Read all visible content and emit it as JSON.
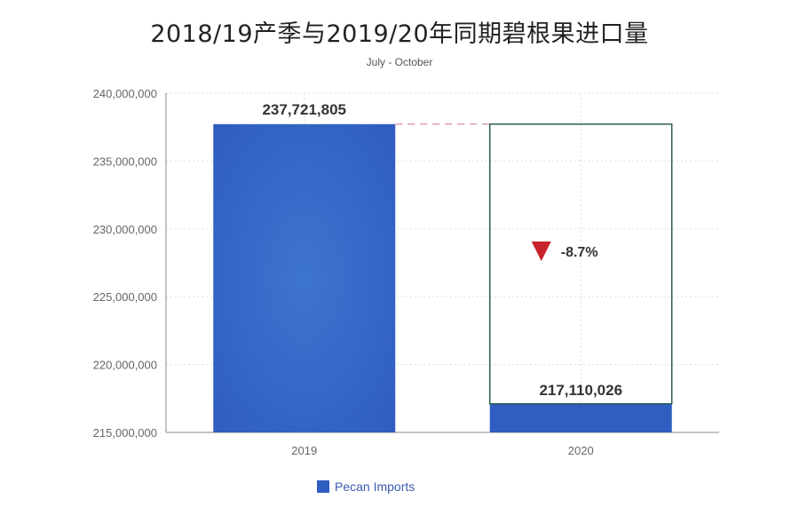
{
  "title": "2018/19产季与2019/20年同期碧根果进口量",
  "subtitle": "July - October",
  "legend": {
    "label": "Pecan Imports",
    "icon": "square-swatch-icon"
  },
  "colors": {
    "bar": "#2f5dc0",
    "outline": "#2e5f53",
    "dash": "#d9a0a8",
    "arrow": "#c8232c",
    "grid": "#dddddd"
  },
  "change_label": "-8.7%",
  "change_icon": "down-triangle-icon",
  "chart_data": {
    "type": "bar",
    "categories": [
      "2019",
      "2020"
    ],
    "series": [
      {
        "name": "Pecan Imports",
        "values": [
          237721805,
          217110026
        ]
      }
    ],
    "data_labels": [
      "237,721,805",
      "217,110,026"
    ],
    "ylim": [
      215000000,
      240000000
    ],
    "yticks": [
      215000000,
      220000000,
      225000000,
      230000000,
      235000000,
      240000000
    ],
    "ytick_labels": [
      "215,000,000",
      "220,000,000",
      "225,000,000",
      "230,000,000",
      "235,000,000",
      "240,000,000"
    ],
    "grid": true,
    "legend_position": "bottom-center"
  }
}
